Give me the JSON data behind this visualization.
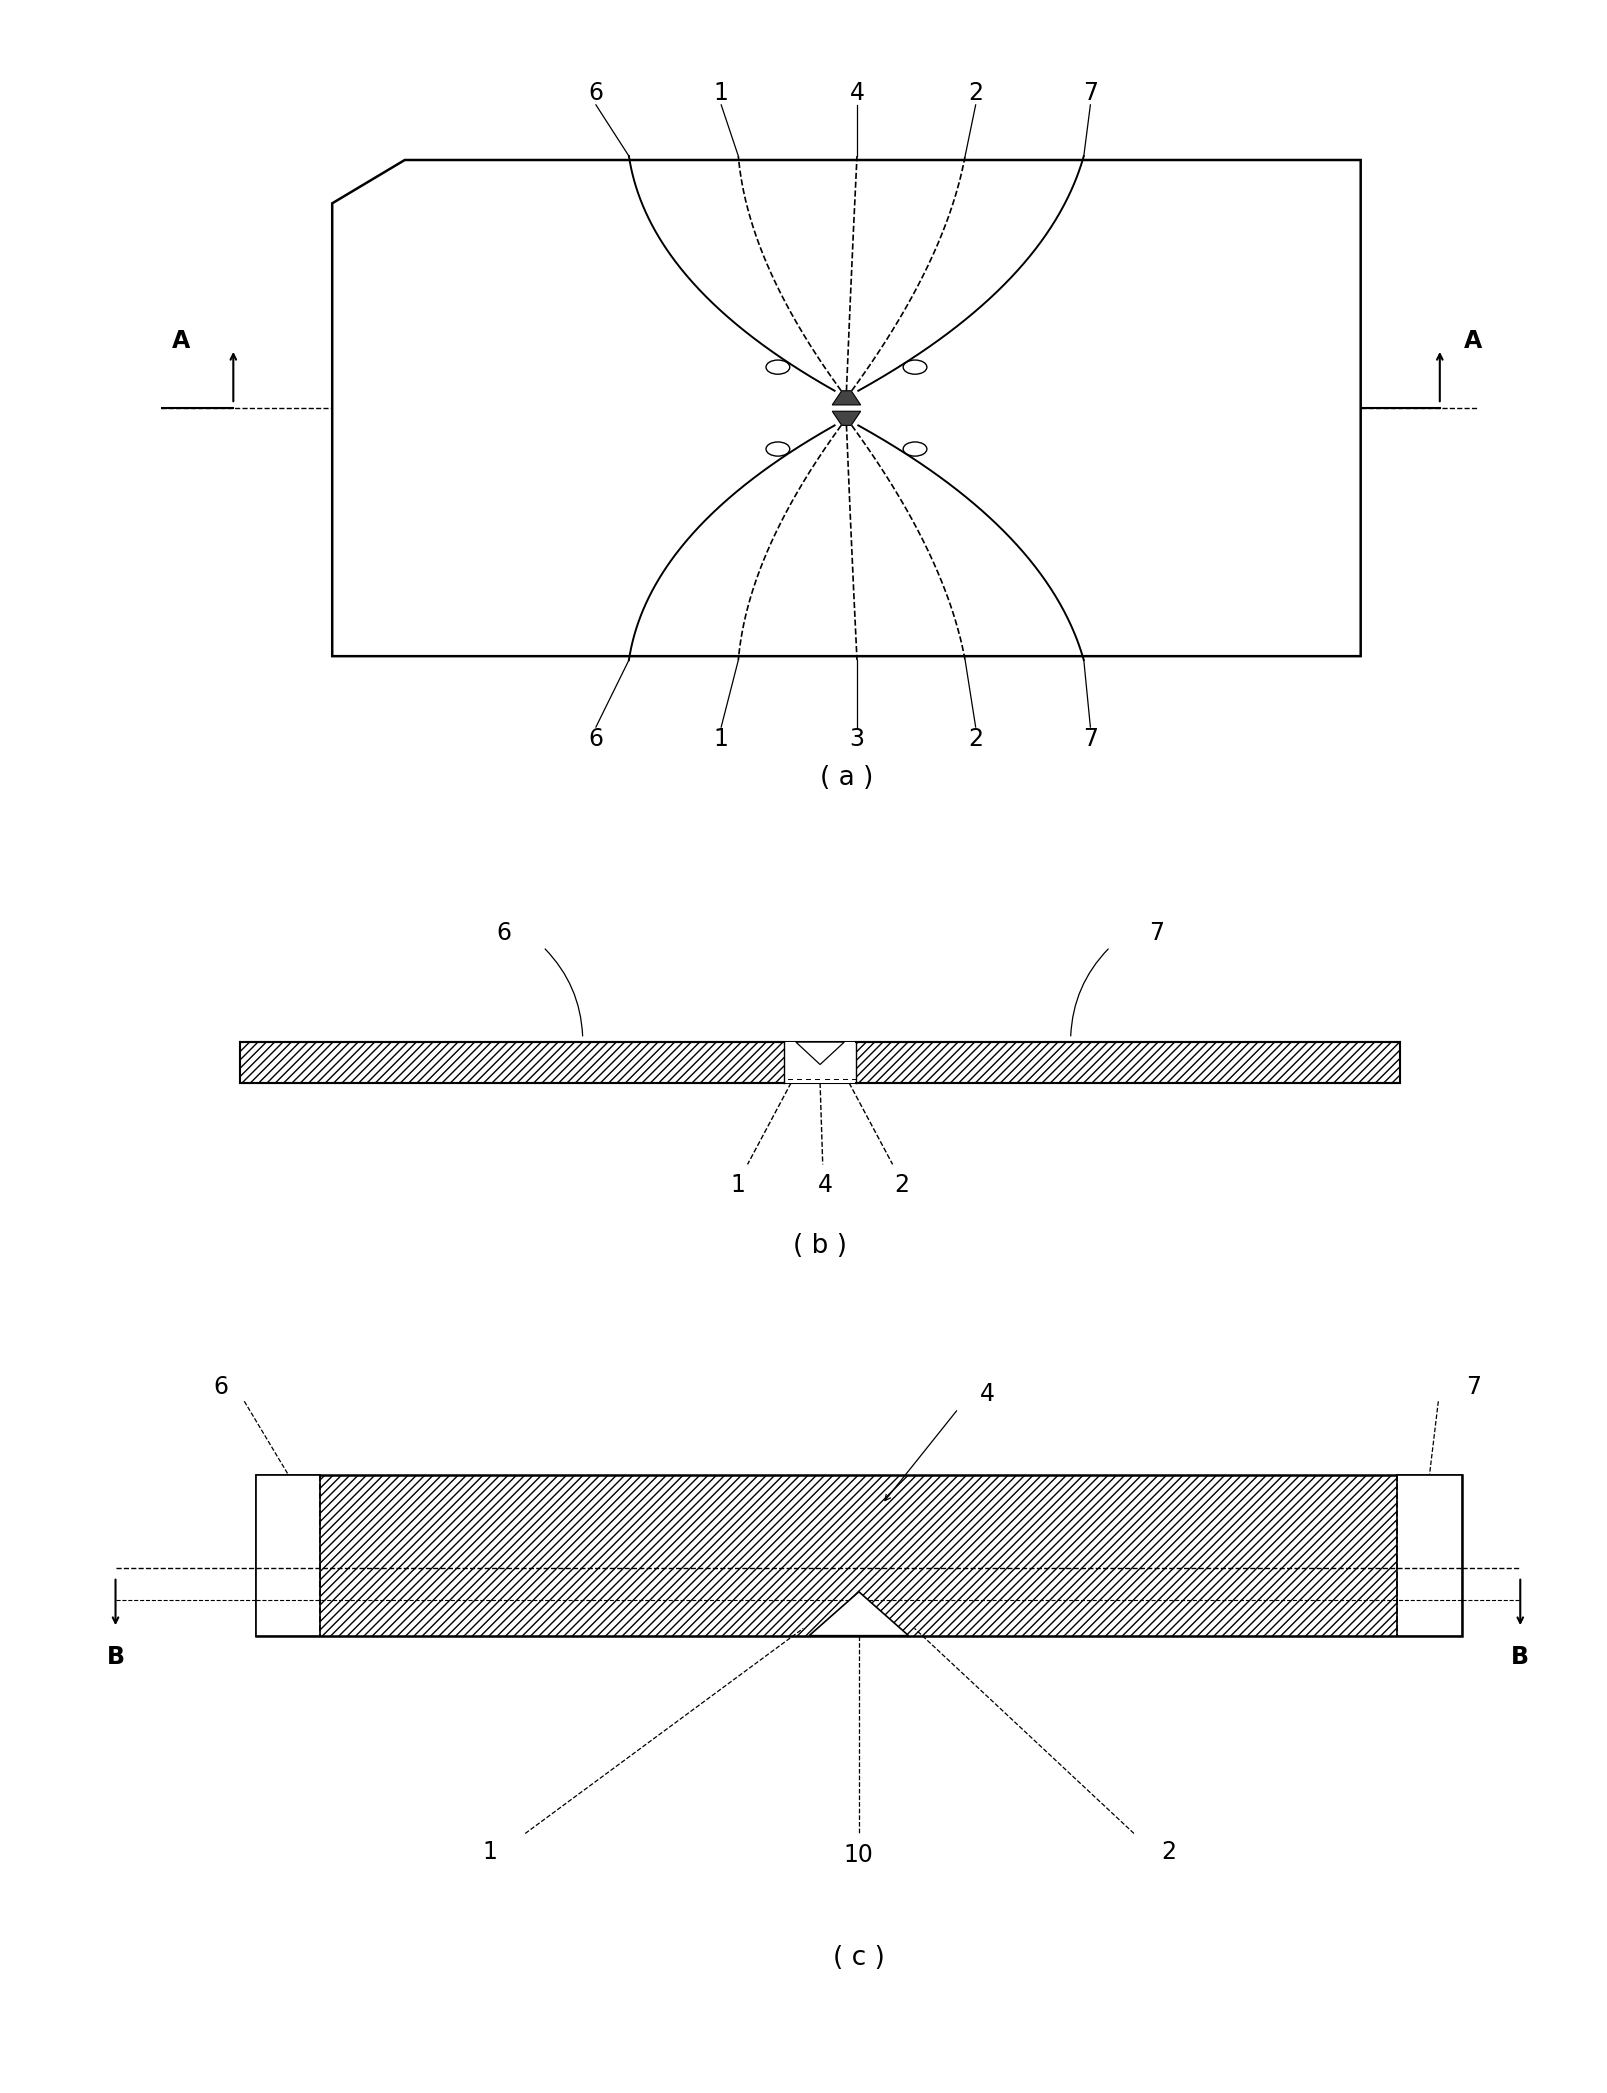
{
  "fig_width": 16.08,
  "fig_height": 20.93,
  "bg_color": "#ffffff",
  "line_color": "#000000",
  "panel_a_label": "( a )",
  "panel_b_label": "( b )",
  "panel_c_label": "( c )"
}
